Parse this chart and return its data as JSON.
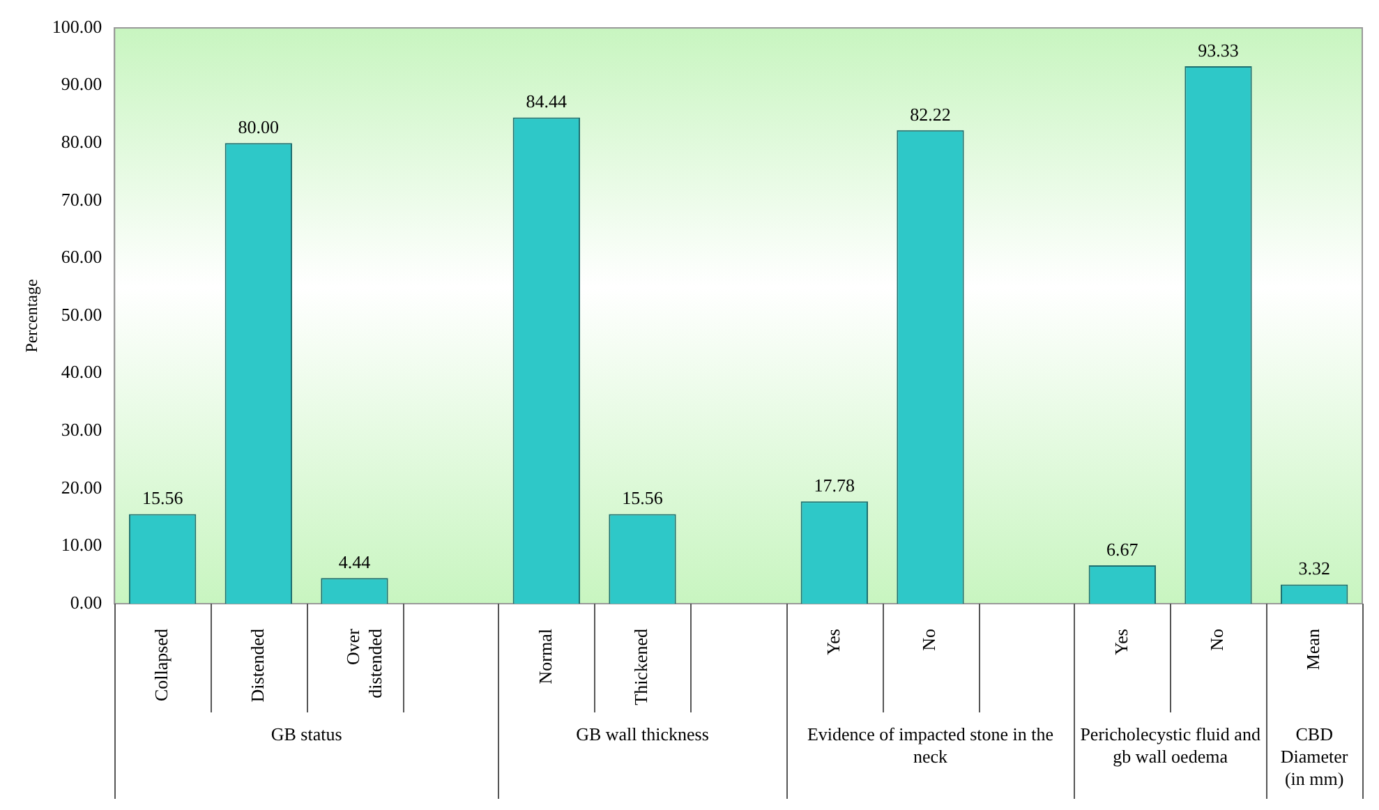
{
  "chart_data": {
    "type": "bar",
    "ylabel": "Percentage",
    "categories": [
      "Collapsed",
      "Distended",
      "Over distended",
      null,
      "Normal",
      "Thickened",
      null,
      "Yes",
      "No",
      null,
      "Yes",
      "No",
      "Mean"
    ],
    "values": [
      15.56,
      80,
      4.44,
      null,
      84.44,
      15.56,
      null,
      17.78,
      82.22,
      null,
      6.67,
      93.33,
      3.32
    ],
    "value_labels": [
      "15.56",
      "80.00",
      "4.44",
      null,
      "84.44",
      "15.56",
      null,
      "17.78",
      "82.22",
      null,
      "6.67",
      "93.33",
      "3.32"
    ],
    "color": "#2ec8c8",
    "ylim": [
      0,
      100
    ],
    "yticks": [
      {
        "value": 0,
        "label": "0.00"
      },
      {
        "value": 10,
        "label": "10.00"
      },
      {
        "value": 20,
        "label": "20.00"
      },
      {
        "value": 30,
        "label": "30.00"
      },
      {
        "value": 40,
        "label": "40.00"
      },
      {
        "value": 50,
        "label": "50.00"
      },
      {
        "value": 60,
        "label": "60.00"
      },
      {
        "value": 70,
        "label": "70.00"
      },
      {
        "value": 80,
        "label": "80.00"
      },
      {
        "value": 90,
        "label": "90.00"
      },
      {
        "value": 100,
        "label": "100.00"
      }
    ],
    "annotations": [
      "GB status",
      "GB wall thickness",
      "Evidence of impacted stone in the neck",
      "Pericholecystic fluid and gb wall oedema",
      "CBD Diameter (in mm)"
    ]
  }
}
